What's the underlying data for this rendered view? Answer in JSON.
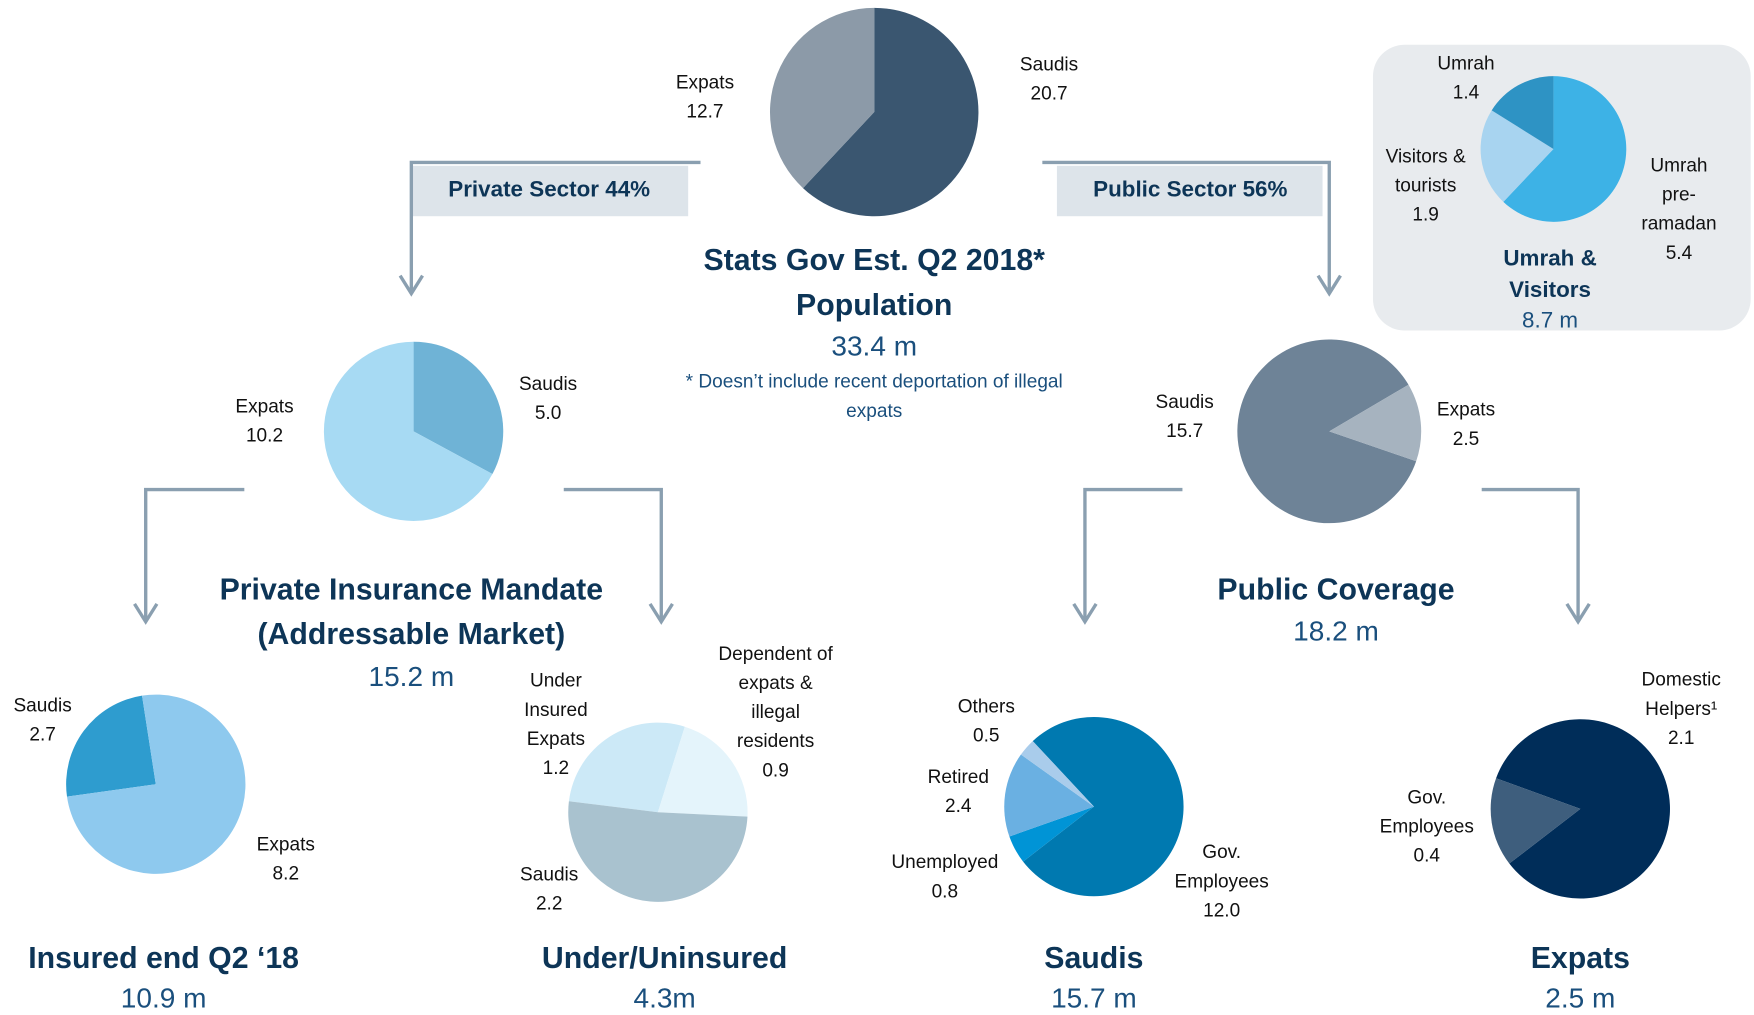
{
  "chart_data": [
    {
      "type": "pie",
      "title": "Stats Gov Est. Q2 2018*\nPopulation",
      "total": "33.4 m",
      "categories": [
        "Saudis",
        "Expats"
      ],
      "values": [
        20.7,
        12.7
      ],
      "value_labels": [
        "20.7",
        "12.7"
      ],
      "colors": [
        "#3a5670",
        "#8c9aa8"
      ]
    },
    {
      "type": "pie",
      "title": "Umrah &\nVisitors",
      "total": "8.7 m",
      "categories": [
        "Umrah\npre-ramadan",
        "Visitors &\ntourists",
        "Umrah"
      ],
      "values": [
        5.4,
        1.9,
        1.4
      ],
      "value_labels": [
        "5.4",
        "1.9",
        "1.4"
      ],
      "colors": [
        "#3db2e6",
        "#a8d4f0",
        "#2e93c4"
      ]
    },
    {
      "type": "pie",
      "title": "Private Insurance Mandate\n(Addressable Market)",
      "total": "15.2 m",
      "categories": [
        "Saudis",
        "Expats"
      ],
      "values": [
        5.0,
        10.2
      ],
      "value_labels": [
        "5.0",
        "10.2"
      ],
      "colors": [
        "#6fb3d6",
        "#a7daf3"
      ]
    },
    {
      "type": "pie",
      "title": "Public Coverage",
      "total": "18.2 m",
      "categories": [
        "Saudis",
        "Expats"
      ],
      "values": [
        15.7,
        2.5
      ],
      "value_labels": [
        "15.7",
        "2.5"
      ],
      "colors": [
        "#6e8397",
        "#a6b3bf"
      ]
    },
    {
      "type": "pie",
      "title": "Insured end Q2 ‘18",
      "total": "10.9 m",
      "categories": [
        "Saudis",
        "Expats"
      ],
      "values": [
        2.7,
        8.2
      ],
      "value_labels": [
        "2.7",
        "8.2"
      ],
      "colors": [
        "#2e9ccf",
        "#8ec9ee"
      ]
    },
    {
      "type": "pie",
      "title": "Under/Uninsured",
      "total": "4.3m",
      "categories": [
        "Under\nInsured\nExpats",
        "Dependent of\nexpats &\nillegal\nresidents",
        "Saudis"
      ],
      "values": [
        1.2,
        0.9,
        2.2
      ],
      "value_labels": [
        "1.2",
        "0.9",
        "2.2"
      ],
      "colors": [
        "#cce9f7",
        "#e4f4fb",
        "#a9c2cf"
      ]
    },
    {
      "type": "pie",
      "title": "Saudis",
      "total": "15.7 m",
      "categories": [
        "Gov.\nEmployees",
        "Unemployed",
        "Retired",
        "Others"
      ],
      "values": [
        12.0,
        0.8,
        2.4,
        0.5
      ],
      "value_labels": [
        "12.0",
        "0.8",
        "2.4",
        "0.5"
      ],
      "colors": [
        "#0079b0",
        "#0094d6",
        "#6ab0e2",
        "#a9cceb"
      ]
    },
    {
      "type": "pie",
      "title": "Expats",
      "total": "2.5 m",
      "categories": [
        "Domestic\nHelpers¹",
        "Gov.\nEmployees"
      ],
      "values": [
        2.1,
        0.4
      ],
      "value_labels": [
        "2.1",
        "0.4"
      ],
      "colors": [
        "#002d59",
        "#3e5e7d"
      ]
    }
  ],
  "sector_labels": [
    "Private Sector  44%",
    "Public Sector  56%"
  ],
  "note": "* Doesn’t include recent deportation of illegal\nexpats"
}
